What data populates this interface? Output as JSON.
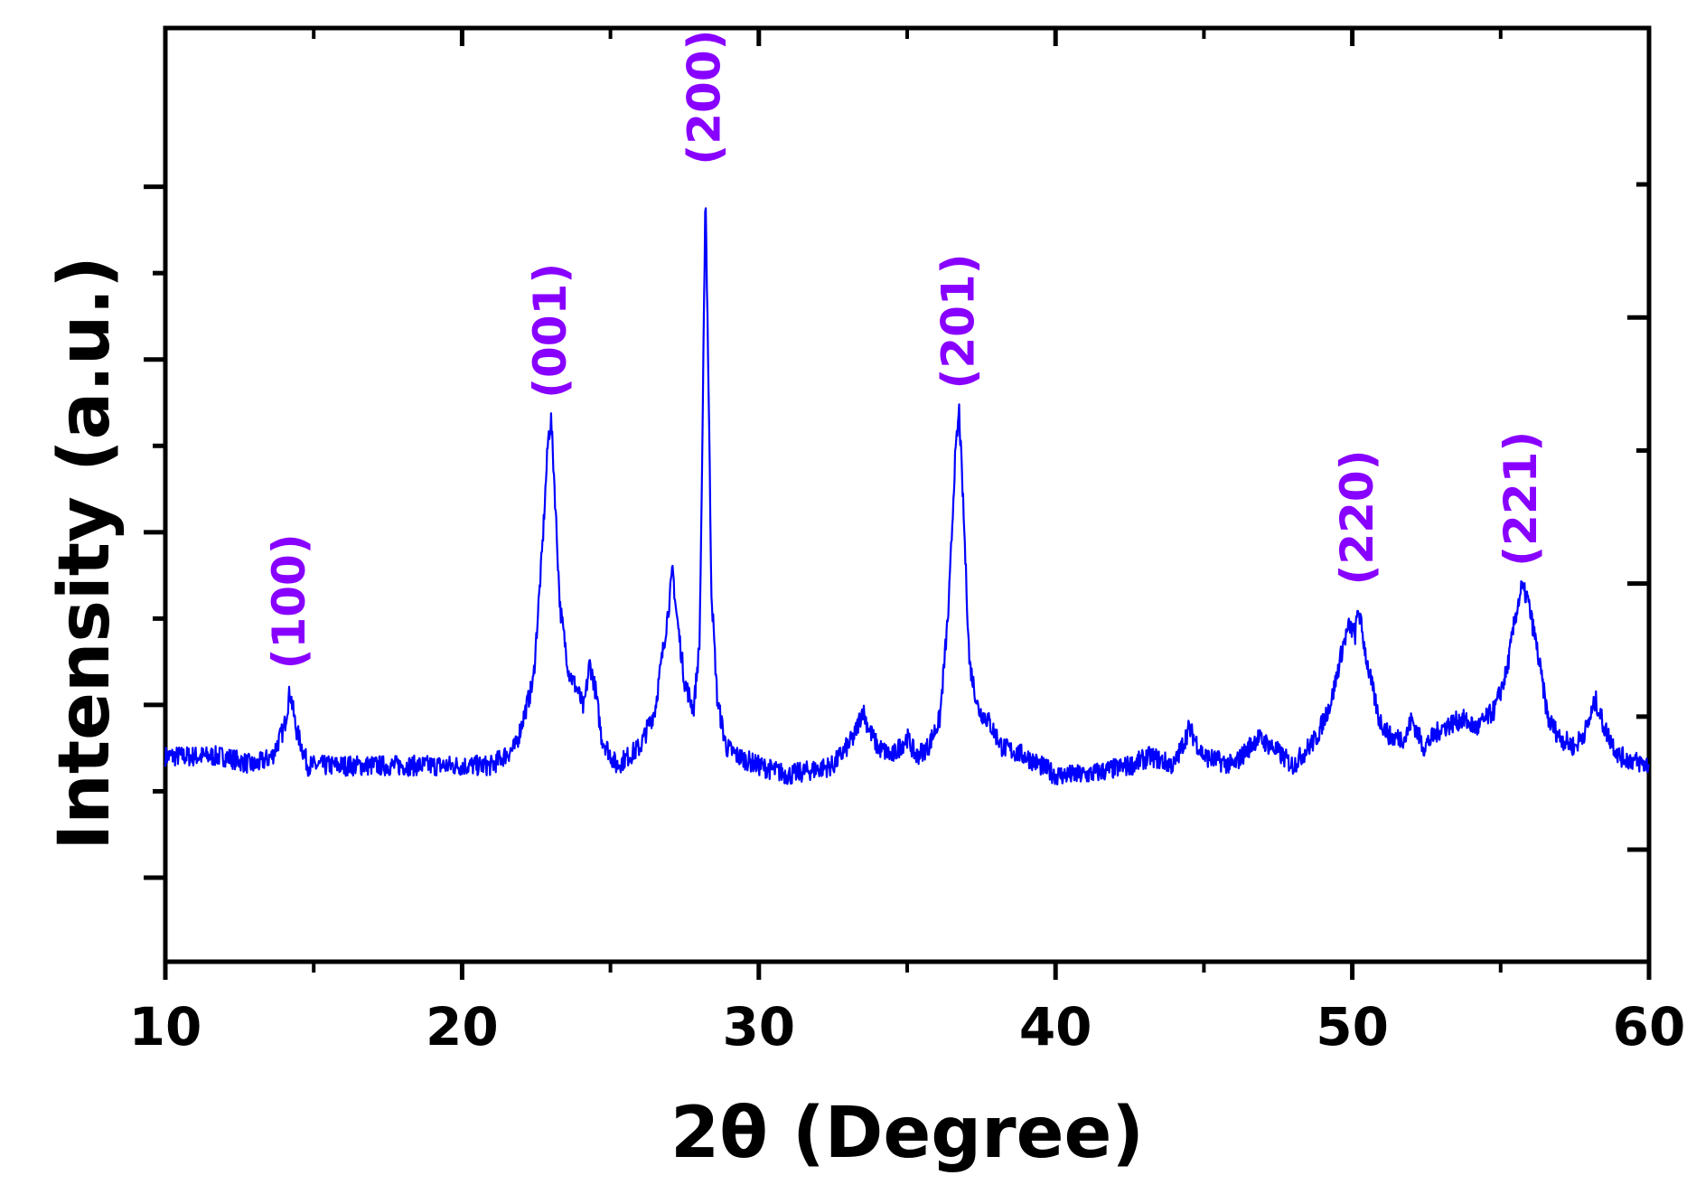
{
  "chart_data": {
    "type": "line",
    "title": "",
    "xlabel": "2θ (Degree)",
    "ylabel": "Intensity (a.u.)",
    "xlim": [
      10,
      60
    ],
    "ylim": [
      0,
      1
    ],
    "x_ticks": [
      "10",
      "20",
      "30",
      "40",
      "50",
      "60"
    ],
    "y_tick_labels_shown": false,
    "grid": false,
    "legend": false,
    "series": [
      {
        "color": "#0000ff",
        "x": [
          10,
          11,
          12,
          13,
          13.6,
          14.0,
          14.2,
          14.4,
          14.8,
          15.5,
          17,
          19,
          21,
          21.8,
          22.4,
          22.7,
          22.9,
          23.0,
          23.1,
          23.3,
          23.6,
          23.9,
          24.1,
          24.3,
          24.5,
          24.7,
          25.2,
          26,
          26.5,
          26.8,
          27.0,
          27.1,
          27.2,
          27.5,
          27.8,
          28.0,
          28.1,
          28.2,
          28.3,
          28.4,
          28.6,
          28.9,
          29.3,
          30,
          31,
          32.5,
          33.2,
          33.5,
          33.7,
          34.0,
          34.5,
          35.0,
          35.3,
          35.7,
          36.1,
          36.4,
          36.6,
          36.75,
          36.9,
          37.1,
          37.4,
          37.7,
          38.2,
          39,
          40,
          41,
          42.5,
          43.2,
          44,
          44.5,
          45,
          46,
          46.8,
          47.3,
          48,
          48.8,
          49.3,
          49.7,
          49.9,
          50.1,
          50.2,
          50.5,
          50.9,
          51.3,
          51.8,
          52.0,
          52.4,
          53,
          53.7,
          54.2,
          54.8,
          55.2,
          55.5,
          55.7,
          55.9,
          56.2,
          56.6,
          57.0,
          57.5,
          57.9,
          58.2,
          58.5,
          59,
          60
        ],
        "y": [
          0.22,
          0.22,
          0.22,
          0.21,
          0.22,
          0.25,
          0.29,
          0.25,
          0.21,
          0.21,
          0.21,
          0.21,
          0.21,
          0.23,
          0.3,
          0.44,
          0.56,
          0.58,
          0.52,
          0.38,
          0.31,
          0.29,
          0.27,
          0.32,
          0.29,
          0.24,
          0.21,
          0.23,
          0.27,
          0.34,
          0.39,
          0.42,
          0.38,
          0.3,
          0.27,
          0.34,
          0.55,
          0.83,
          0.63,
          0.4,
          0.28,
          0.23,
          0.22,
          0.21,
          0.2,
          0.21,
          0.24,
          0.27,
          0.25,
          0.23,
          0.22,
          0.24,
          0.22,
          0.23,
          0.26,
          0.38,
          0.53,
          0.59,
          0.48,
          0.32,
          0.27,
          0.26,
          0.23,
          0.22,
          0.2,
          0.2,
          0.21,
          0.22,
          0.21,
          0.25,
          0.22,
          0.21,
          0.24,
          0.23,
          0.21,
          0.24,
          0.28,
          0.34,
          0.36,
          0.35,
          0.38,
          0.32,
          0.26,
          0.24,
          0.24,
          0.26,
          0.23,
          0.25,
          0.26,
          0.25,
          0.27,
          0.31,
          0.37,
          0.4,
          0.39,
          0.34,
          0.26,
          0.24,
          0.23,
          0.25,
          0.28,
          0.25,
          0.22,
          0.21
        ]
      }
    ],
    "annotations": [
      {
        "text": "(100)",
        "x": 14.2,
        "y": 0.29,
        "color": "#8800ff"
      },
      {
        "text": "(001)",
        "x": 23.0,
        "y": 0.58,
        "color": "#8800ff"
      },
      {
        "text": "(200)",
        "x": 28.2,
        "y": 0.83,
        "color": "#8800ff"
      },
      {
        "text": "(201)",
        "x": 36.75,
        "y": 0.59,
        "color": "#8800ff"
      },
      {
        "text": "(220)",
        "x": 50.2,
        "y": 0.38,
        "color": "#8800ff"
      },
      {
        "text": "(221)",
        "x": 55.7,
        "y": 0.4,
        "color": "#8800ff"
      }
    ]
  }
}
